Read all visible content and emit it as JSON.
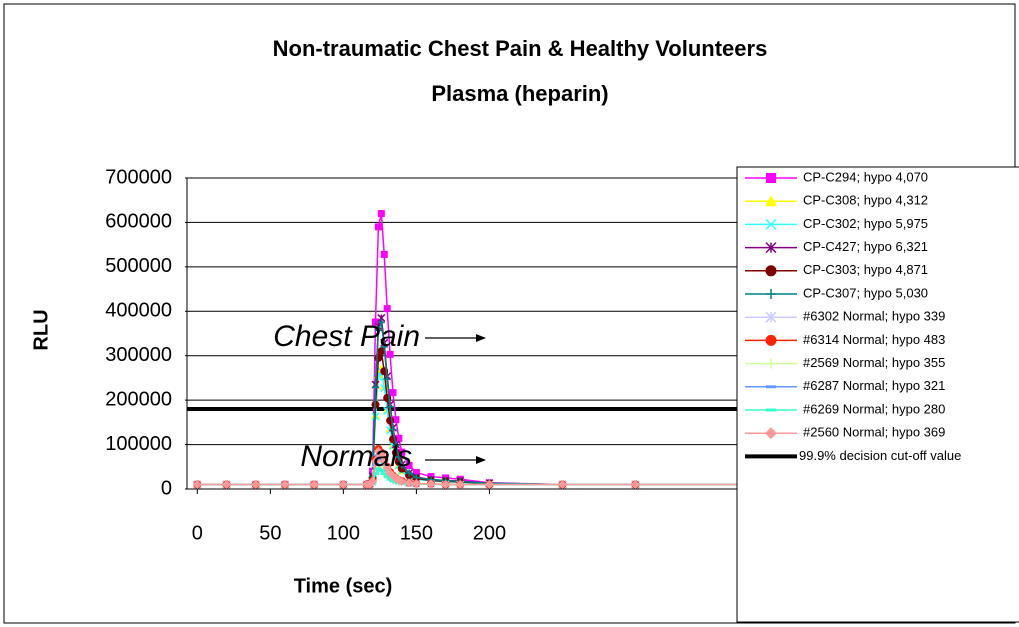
{
  "chart_data": {
    "type": "line",
    "title": "Non-traumatic Chest Pain & Healthy Volunteers",
    "subtitle": "Plasma (heparin)",
    "x_label": "Time (sec)",
    "y_label": "RLU",
    "x": [
      0,
      20,
      40,
      60,
      80,
      100,
      116,
      118,
      120,
      122,
      124,
      126,
      128,
      130,
      132,
      134,
      136,
      138,
      140,
      145,
      150,
      160,
      170,
      180,
      200,
      250,
      300,
      375
    ],
    "xlim": [
      -5,
      375
    ],
    "xticks": [
      0,
      50,
      100,
      150,
      200
    ],
    "ylim": [
      0,
      700000
    ],
    "yticks": [
      0,
      100000,
      200000,
      300000,
      400000,
      500000,
      600000,
      700000
    ],
    "grid": true,
    "legend": "right",
    "series": [
      {
        "name": "CP-C294; hypo 4,070",
        "color": "#ff00ff",
        "marker": "square",
        "values": [
          10000,
          10000,
          10000,
          10000,
          10000,
          10000,
          10000,
          12000,
          40000,
          376000,
          590000,
          620000,
          528000,
          406000,
          303000,
          217000,
          156000,
          114000,
          83000,
          53000,
          37000,
          28000,
          25000,
          22000,
          14000,
          10000,
          10000,
          10000
        ]
      },
      {
        "name": "CP-C308; hypo 4,312",
        "color": "#ffff00",
        "marker": "triangle",
        "values": [
          10000,
          10000,
          10000,
          10000,
          10000,
          10000,
          10000,
          11000,
          23000,
          166000,
          257000,
          270000,
          231000,
          179000,
          135000,
          98000,
          72000,
          54000,
          41000,
          28000,
          22000,
          18000,
          16000,
          15000,
          12000,
          10000,
          10000,
          10000
        ]
      },
      {
        "name": "CP-C302; hypo 5,975",
        "color": "#33ffff",
        "marker": "x",
        "values": [
          10000,
          10000,
          10000,
          10000,
          10000,
          10000,
          10000,
          11000,
          23000,
          163000,
          252000,
          265000,
          227000,
          176000,
          132000,
          97000,
          71000,
          53000,
          41000,
          28000,
          21000,
          18000,
          16000,
          15000,
          12000,
          10000,
          10000,
          10000
        ]
      },
      {
        "name": "CP-C427; hypo 6,321",
        "color": "#800080",
        "marker": "star",
        "values": [
          10000,
          10000,
          10000,
          10000,
          10000,
          10000,
          10000,
          12000,
          29000,
          235000,
          366000,
          385000,
          329000,
          254000,
          190000,
          138000,
          100000,
          74000,
          55000,
          36000,
          27000,
          21000,
          19000,
          18000,
          13000,
          10000,
          10000,
          10000
        ]
      },
      {
        "name": "CP-C303; hypo 4,871",
        "color": "#800000",
        "marker": "circle",
        "values": [
          10000,
          10000,
          10000,
          10000,
          10000,
          10000,
          10000,
          11000,
          25000,
          190000,
          295000,
          310000,
          265000,
          205000,
          154000,
          112000,
          82000,
          61000,
          46000,
          31000,
          24000,
          19000,
          17500,
          16000,
          12000,
          10000,
          10000,
          10000
        ]
      },
      {
        "name": "CP-C307; hypo 5,030",
        "color": "#008080",
        "marker": "plus",
        "values": [
          10000,
          10000,
          10000,
          10000,
          10000,
          10000,
          10000,
          12000,
          28000,
          229000,
          357000,
          375000,
          320000,
          247000,
          185000,
          134000,
          98000,
          72000,
          54000,
          36000,
          26000,
          21000,
          19000,
          17000,
          13000,
          10000,
          10000,
          10000
        ]
      },
      {
        "name": "#6302 Normal; hypo 339",
        "color": "#ccccff",
        "marker": "star",
        "values": [
          10000,
          10000,
          10000,
          10000,
          10000,
          10000,
          10000,
          10000,
          15000,
          45000,
          60000,
          55000,
          45000,
          35000,
          27500,
          22500,
          19000,
          16500,
          15000,
          12500,
          11500,
          11000,
          10000,
          10000,
          10000,
          10000,
          10000,
          10000
        ]
      },
      {
        "name": "#6314 Normal; hypo 483",
        "color": "#ff2200",
        "marker": "circle",
        "values": [
          10000,
          10000,
          10000,
          10000,
          10000,
          10000,
          10000,
          10000,
          18000,
          66000,
          90000,
          82000,
          66000,
          50000,
          38000,
          30000,
          24000,
          20000,
          18000,
          14000,
          12000,
          11600,
          10000,
          10000,
          10000,
          10000,
          10000,
          10000
        ]
      },
      {
        "name": "#2569 Normal; hypo 355",
        "color": "#ccff99",
        "marker": "plus",
        "values": [
          10000,
          10000,
          10000,
          10000,
          10000,
          10000,
          10000,
          10000,
          14500,
          41500,
          55000,
          50500,
          41500,
          32500,
          26000,
          21000,
          18000,
          16000,
          14500,
          12000,
          11500,
          11000,
          10000,
          10000,
          10000,
          10000,
          10000,
          10000
        ]
      },
      {
        "name": "#6287 Normal; hypo 321",
        "color": "#6699ff",
        "marker": "dash",
        "values": [
          10000,
          10000,
          10000,
          10000,
          10000,
          10000,
          10000,
          10000,
          16500,
          55500,
          75000,
          68500,
          55500,
          42500,
          33000,
          26000,
          21500,
          18500,
          16500,
          13000,
          12000,
          11300,
          10000,
          10000,
          10000,
          10000,
          10000,
          10000
        ]
      },
      {
        "name": "#6269 Normal; hypo 280",
        "color": "#33ffcc",
        "marker": "dash",
        "values": [
          10000,
          10000,
          10000,
          10000,
          10000,
          10000,
          10000,
          10000,
          13500,
          34500,
          45000,
          41500,
          34500,
          27500,
          22000,
          19000,
          16000,
          14500,
          13500,
          11500,
          11000,
          10500,
          10000,
          10000,
          10000,
          10000,
          10000,
          10000
        ]
      },
      {
        "name": "#2560 Normal; hypo 369",
        "color": "#ff9999",
        "marker": "diamond",
        "values": [
          10000,
          10000,
          10000,
          10000,
          10000,
          10000,
          10000,
          10000,
          17500,
          62500,
          85000,
          77500,
          62500,
          47500,
          36000,
          29000,
          23500,
          20000,
          17500,
          14000,
          12000,
          11500,
          10000,
          10000,
          10000,
          10000,
          10000,
          10000
        ]
      }
    ],
    "reference_line": {
      "name": "99.9% decision cut-off value",
      "value": 180000,
      "color": "#000000"
    },
    "annotations": [
      {
        "text": "Chest Pain"
      },
      {
        "text": "Normals"
      }
    ]
  }
}
